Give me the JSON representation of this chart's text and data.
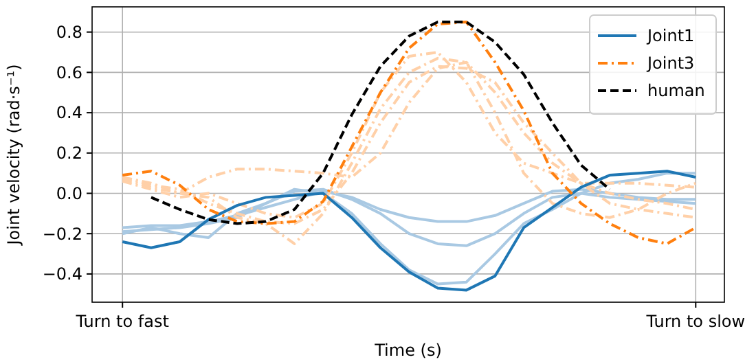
{
  "chart_data": {
    "type": "line",
    "xlabel": "Time (s)",
    "ylabel": "Joint velocity (rad·s⁻¹)",
    "categories": [
      "Turn to fast",
      null,
      null,
      null,
      null,
      null,
      null,
      null,
      null,
      null,
      null,
      null,
      null,
      null,
      null,
      null,
      null,
      null,
      null,
      null,
      "Turn to slow"
    ],
    "ylim": [
      -0.54,
      0.925
    ],
    "yticks": [
      {
        "value": -0.4,
        "label": "−0.4"
      },
      {
        "value": -0.2,
        "label": "−0.2"
      },
      {
        "value": 0,
        "label": "0.0"
      },
      {
        "value": 0.2,
        "label": "0.2"
      },
      {
        "value": 0.4,
        "label": "0.4"
      },
      {
        "value": 0.6,
        "label": "0.6"
      },
      {
        "value": 0.8,
        "label": "0.8"
      }
    ],
    "grid": true,
    "legend": "top right",
    "series": [
      {
        "color": "#a9c9e3",
        "line_style": "solid",
        "values": [
          -0.2,
          -0.17,
          -0.2,
          -0.22,
          -0.1,
          -0.05,
          0.02,
          0,
          -0.1,
          -0.25,
          -0.38,
          -0.45,
          -0.44,
          -0.3,
          -0.15,
          -0.08,
          0,
          0.05,
          0.07,
          0.1,
          0.1
        ]
      },
      {
        "color": "#a9c9e3",
        "line_style": "solid",
        "values": [
          -0.19,
          -0.18,
          -0.17,
          -0.15,
          -0.12,
          -0.05,
          0.01,
          0.02,
          -0.03,
          -0.1,
          -0.2,
          -0.25,
          -0.26,
          -0.2,
          -0.1,
          -0.02,
          0,
          -0.02,
          -0.03,
          -0.04,
          -0.05
        ]
      },
      {
        "color": "#a9c9e3",
        "line_style": "solid",
        "values": [
          -0.17,
          -0.16,
          -0.16,
          -0.14,
          -0.11,
          -0.07,
          -0.03,
          0.01,
          -0.02,
          -0.08,
          -0.12,
          -0.14,
          -0.14,
          -0.11,
          -0.05,
          0.01,
          0.02,
          0,
          -0.02,
          -0.03,
          -0.03
        ]
      },
      {
        "color": "#ffd0a8",
        "line_style": "dashdot",
        "values": [
          0.07,
          0.03,
          0,
          0.08,
          0.12,
          0.12,
          0.11,
          0.1,
          0.08,
          0.2,
          0.45,
          0.62,
          0.65,
          0.5,
          0.3,
          0.15,
          0.05,
          0.05,
          0.05,
          0.04,
          0.03
        ]
      },
      {
        "color": "#ffd0a8",
        "line_style": "dashdot",
        "values": [
          0.08,
          0.05,
          0,
          -0.02,
          -0.12,
          -0.15,
          -0.25,
          -0.1,
          0.15,
          0.42,
          0.6,
          0.67,
          0.65,
          0.4,
          0.1,
          -0.05,
          -0.1,
          -0.12,
          -0.08,
          -0.1,
          -0.12
        ]
      },
      {
        "color": "#ffd0a8",
        "line_style": "dashdot",
        "values": [
          0.06,
          0.02,
          -0.02,
          0,
          -0.05,
          -0.1,
          -0.12,
          -0.05,
          0.2,
          0.5,
          0.68,
          0.7,
          0.55,
          0.3,
          0.15,
          0.1,
          0.05,
          0,
          -0.03,
          -0.05,
          -0.08
        ]
      },
      {
        "color": "#ffd0a8",
        "line_style": "dashdot",
        "values": [
          0.08,
          0.04,
          0.02,
          -0.05,
          -0.1,
          -0.14,
          -0.15,
          -0.08,
          0.1,
          0.35,
          0.55,
          0.63,
          0.62,
          0.55,
          0.35,
          0.2,
          0.05,
          -0.05,
          -0.08,
          0,
          0.05
        ]
      },
      {
        "name": "Joint1",
        "color": "#1f77b4",
        "line_style": "solid",
        "values": [
          -0.24,
          -0.27,
          -0.24,
          -0.13,
          -0.06,
          -0.02,
          -0.01,
          0,
          -0.12,
          -0.27,
          -0.39,
          -0.47,
          -0.48,
          -0.41,
          -0.17,
          -0.07,
          0.03,
          0.09,
          0.1,
          0.11,
          0.08
        ]
      },
      {
        "name": "Joint3",
        "color": "#ff7f0e",
        "line_style": "dashdot",
        "values": [
          0.09,
          0.11,
          0.04,
          -0.08,
          -0.14,
          -0.15,
          -0.14,
          -0.04,
          0.23,
          0.5,
          0.72,
          0.84,
          0.85,
          0.65,
          0.41,
          0.1,
          -0.05,
          -0.15,
          -0.22,
          -0.25,
          -0.17
        ]
      },
      {
        "name": "human",
        "color": "#000000",
        "line_style": "dashed",
        "values": [
          null,
          -0.02,
          -0.08,
          -0.13,
          -0.15,
          -0.14,
          -0.08,
          0.1,
          0.39,
          0.63,
          0.78,
          0.85,
          0.85,
          0.75,
          0.59,
          0.35,
          0.14,
          0.02,
          null,
          null,
          null
        ]
      }
    ]
  }
}
